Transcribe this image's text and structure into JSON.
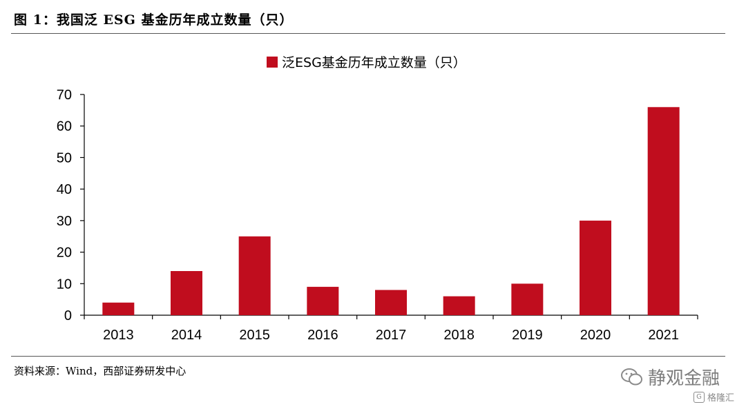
{
  "figure": {
    "title": "图 1：我国泛 ESG 基金历年成立数量（只）",
    "source": "资料来源：Wind，西部证券研发中心"
  },
  "watermark": {
    "main": "静观金融",
    "sub": "格隆汇",
    "icon": "wechat-icon"
  },
  "colors": {
    "bar": "#c00d1e",
    "axis": "#000000"
  },
  "chart_data": {
    "type": "bar",
    "categories": [
      "2013",
      "2014",
      "2015",
      "2016",
      "2017",
      "2018",
      "2019",
      "2020",
      "2021"
    ],
    "series": [
      {
        "name": "泛ESG基金历年成立数量（只）",
        "values": [
          4,
          14,
          25,
          9,
          8,
          6,
          10,
          30,
          66
        ]
      }
    ],
    "yticks": [
      "0",
      "10",
      "20",
      "30",
      "40",
      "50",
      "60",
      "70"
    ],
    "ylim": [
      0,
      70
    ],
    "legend_position": "top-center",
    "grid": false
  }
}
